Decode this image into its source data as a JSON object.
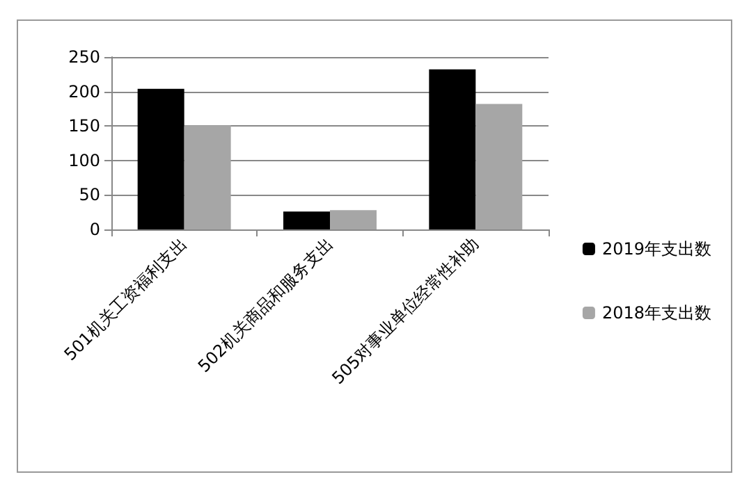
{
  "chart_data": {
    "type": "bar",
    "categories": [
      "501机关工资福利支出",
      "502机关商品和服务支出",
      "505对事业单位经常性补助"
    ],
    "series": [
      {
        "name": "2019年支出数",
        "color": "#000000",
        "values": [
          204,
          26,
          232
        ]
      },
      {
        "name": "2018年支出数",
        "color": "#a6a6a6",
        "values": [
          151,
          28,
          182
        ]
      }
    ],
    "ylim": [
      0,
      250
    ],
    "yticks": [
      0,
      50,
      100,
      150,
      200,
      250
    ],
    "grid": "y",
    "legend": "right"
  }
}
